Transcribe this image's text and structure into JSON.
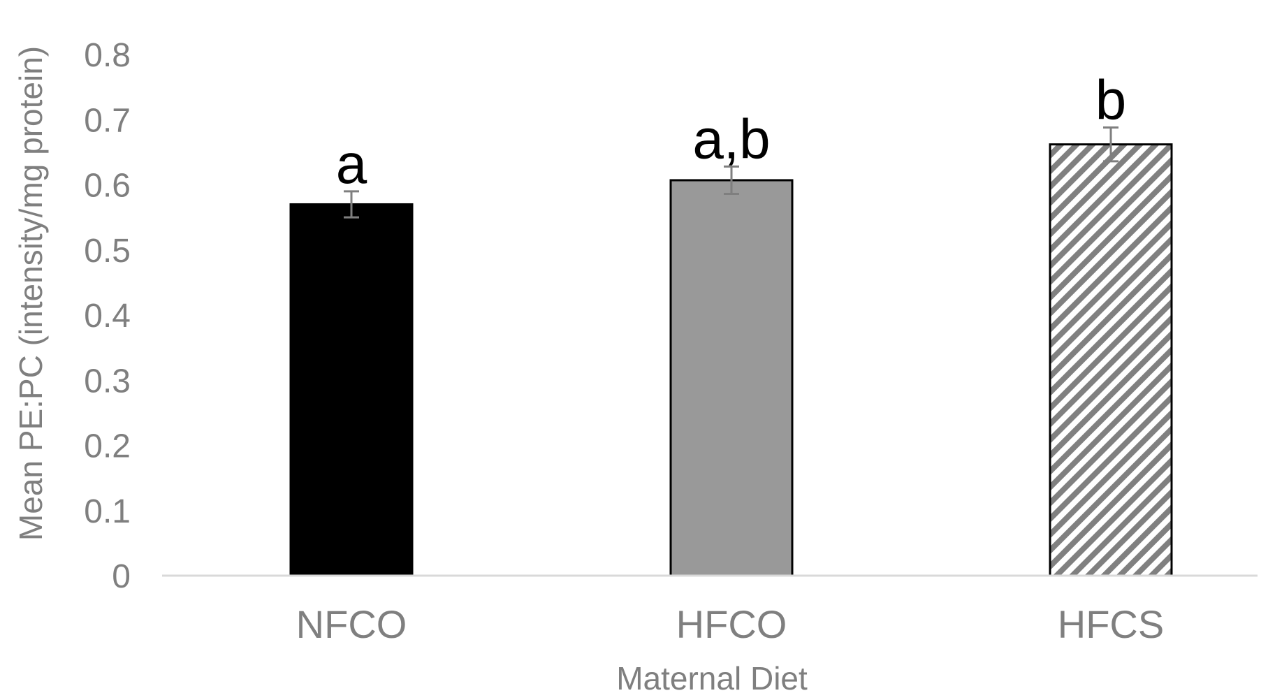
{
  "chart_data": {
    "type": "bar",
    "title": "",
    "xlabel": "Maternal Diet",
    "ylabel": "Mean PE:PC (intensity/mg protein)",
    "ylim": [
      0,
      0.8
    ],
    "yticks": [
      "0",
      "0.1",
      "0.2",
      "0.3",
      "0.4",
      "0.5",
      "0.6",
      "0.7",
      "0.8"
    ],
    "grid": false,
    "categories": [
      "NFCO",
      "HFCO",
      "HFCS"
    ],
    "values": [
      0.57,
      0.607,
      0.662
    ],
    "errors": [
      0.02,
      0.021,
      0.026
    ],
    "significance_labels": [
      "a",
      "a,b",
      "b"
    ],
    "bar_styles": [
      {
        "fill": "#000000",
        "pattern": "solid"
      },
      {
        "fill": "#999999",
        "pattern": "solid"
      },
      {
        "fill": "#ffffff",
        "pattern": "diagonal-stripes",
        "stripe_color": "#808080"
      }
    ],
    "colors": {
      "axis_line": "#d9d9d9",
      "text": "#7f7f7f",
      "error_bar": "#7f7f7f",
      "bar_outline": "#000000"
    }
  }
}
